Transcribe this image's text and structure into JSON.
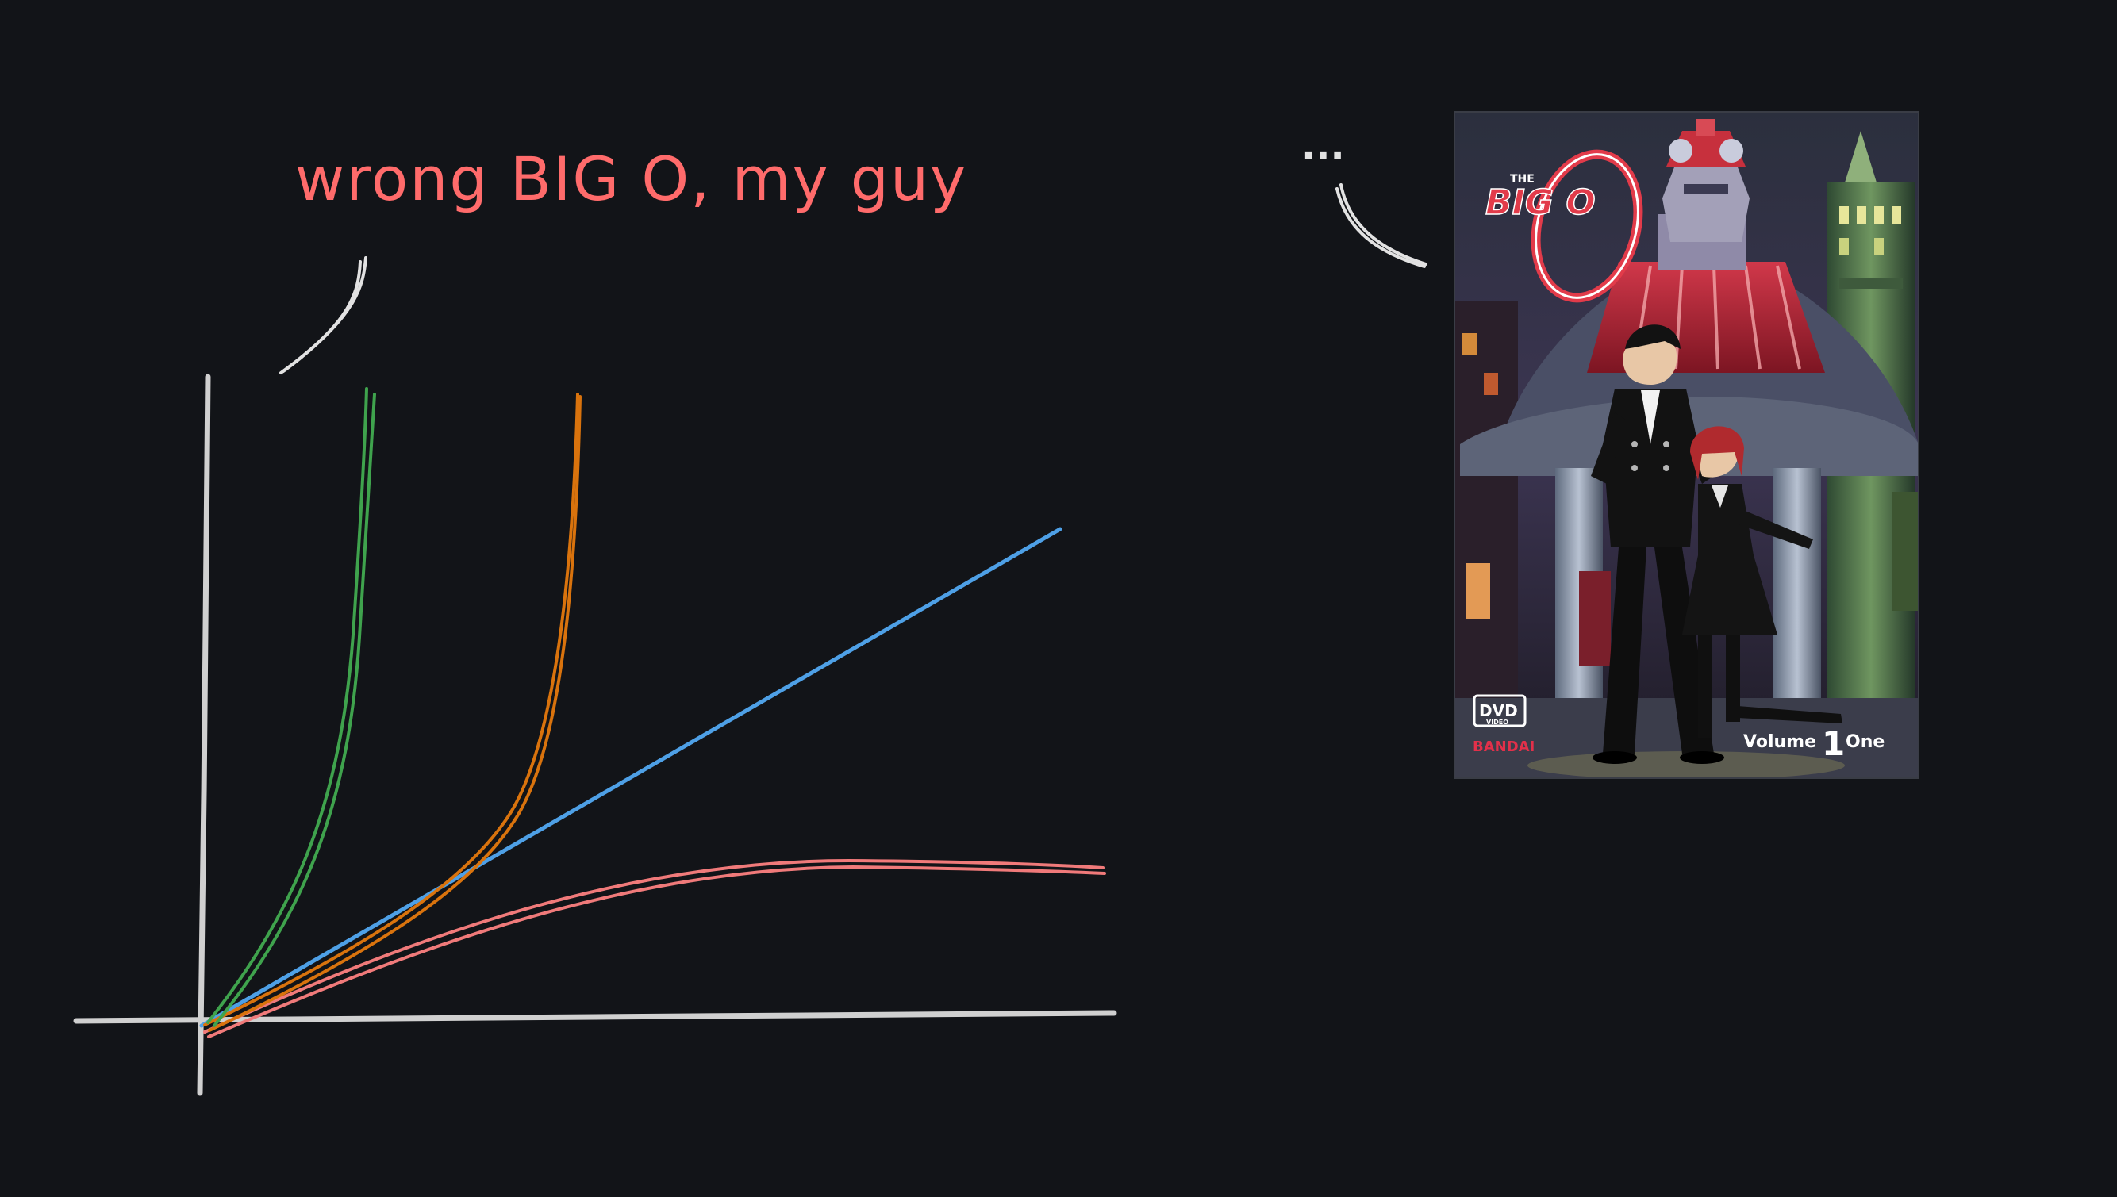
{
  "annotation": {
    "text": "wrong BIG O, my guy",
    "color": "#ff6b6b"
  },
  "reaction": {
    "text": "..."
  },
  "colors": {
    "background": "#121418",
    "axis": "#d0d0d0",
    "arrow": "#e2e2e2",
    "green_curve": "#3fa34d",
    "orange_curve": "#d9730d",
    "blue_line": "#4ea0e6",
    "red_curve": "#f07a7a"
  },
  "cover": {
    "logo_the": "THE",
    "logo_main": "BIG O",
    "badge": "DVD",
    "badge_sub": "VIDEO",
    "publisher": "BANDAI",
    "volume_word": "Volume",
    "volume_number": "1",
    "volume_name": "One"
  }
}
